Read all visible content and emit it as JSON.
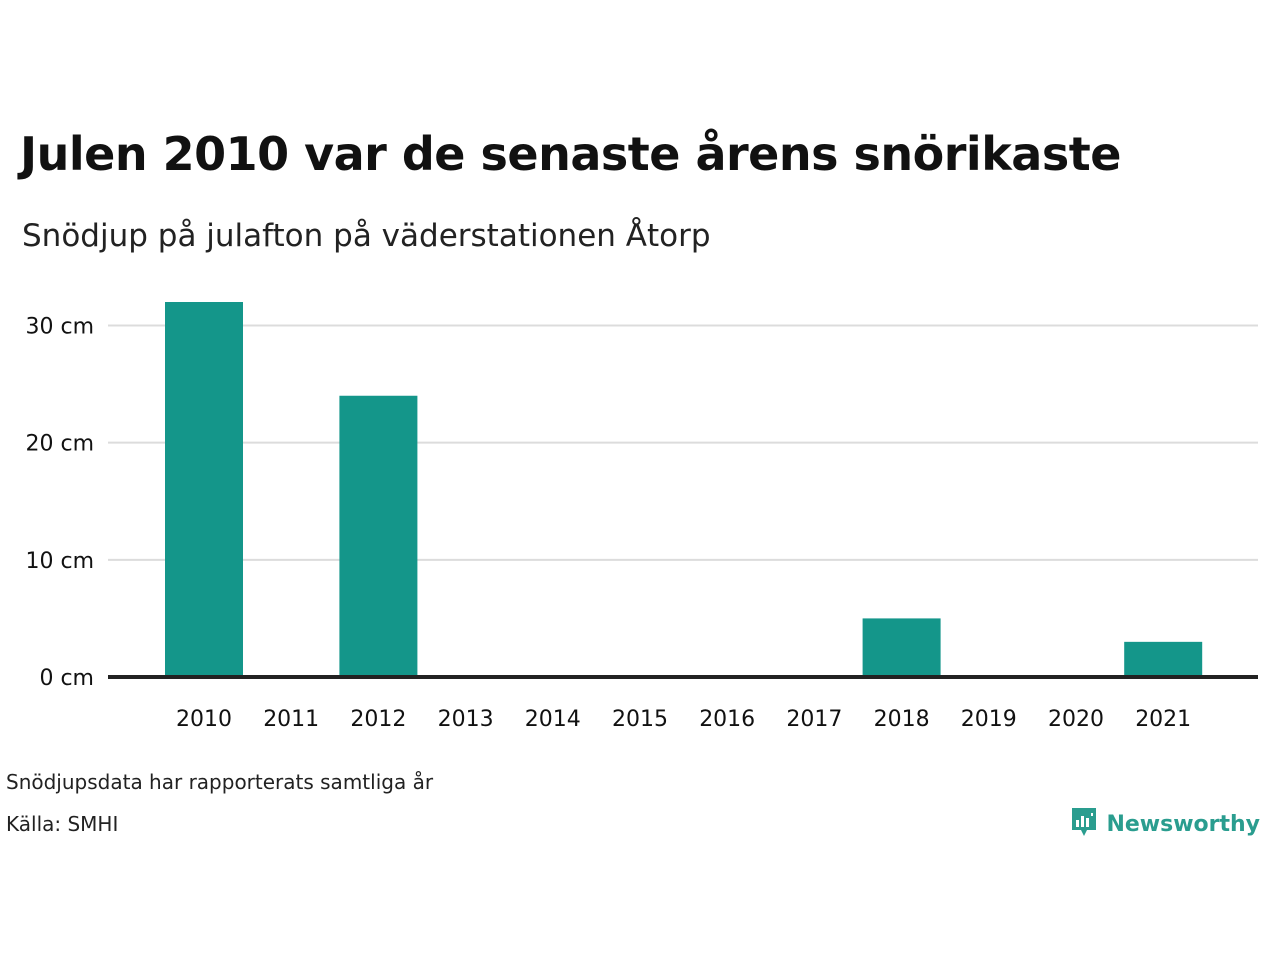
{
  "title": "Julen 2010 var de senaste årens snörikaste",
  "subtitle": "Snödjup på julafton på väderstationen Åtorp",
  "note": "Snödjupsdata har rapporterats samtliga år",
  "source": "Källa: SMHI",
  "brand": {
    "name": "Newsworthy",
    "color": "#2a9d8f",
    "icon": "bar-chart-speech-bubble-icon"
  },
  "chart_data": {
    "type": "bar",
    "categories": [
      "2010",
      "2011",
      "2012",
      "2013",
      "2014",
      "2015",
      "2016",
      "2017",
      "2018",
      "2019",
      "2020",
      "2021"
    ],
    "values": [
      32,
      0,
      24,
      0,
      0,
      0,
      0,
      0,
      5,
      0,
      0,
      3
    ],
    "y_ticks": [
      0,
      10,
      20,
      30
    ],
    "y_tick_labels": [
      "0 cm",
      "10 cm",
      "20 cm",
      "30 cm"
    ],
    "ylim": [
      0,
      32
    ],
    "bar_color": "#14968a",
    "grid": true,
    "xlabel": "",
    "ylabel": ""
  }
}
